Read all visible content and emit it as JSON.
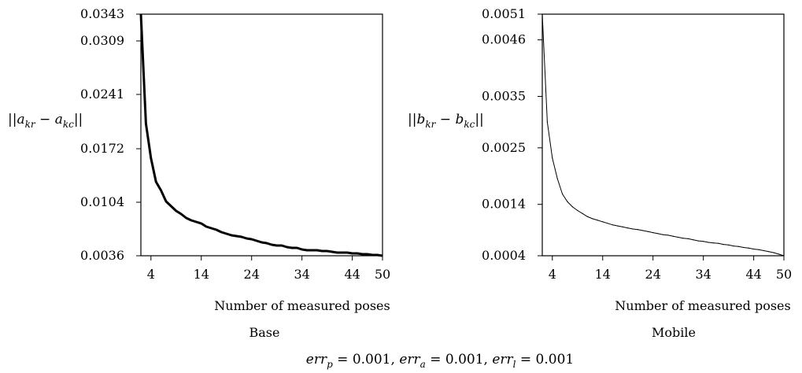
{
  "chart_data": [
    {
      "type": "line",
      "title": "Base",
      "xlabel": "Number of measured poses",
      "ylabel": "||a_{kr} - a_{kc}||",
      "ylabel_parts": {
        "open": "||",
        "var1": "a",
        "sub1": "kr",
        "minus": " − ",
        "var2": "a",
        "sub2": "kc",
        "close": "||"
      },
      "xlim": [
        2,
        50
      ],
      "ylim": [
        0.0036,
        0.0343
      ],
      "x_ticks": [
        4,
        14,
        24,
        34,
        44,
        50
      ],
      "y_ticks": [
        "0.0036",
        "0.0104",
        "0.0172",
        "0.0241",
        "0.0309",
        "0.0343"
      ],
      "grid": false,
      "series": [
        {
          "x": [
            2,
            3,
            4,
            5,
            6,
            7,
            8,
            9,
            10,
            11,
            12,
            13,
            14,
            15,
            16,
            17,
            18,
            19,
            20,
            21,
            22,
            23,
            24,
            25,
            26,
            27,
            28,
            29,
            30,
            31,
            32,
            33,
            34,
            35,
            36,
            37,
            38,
            39,
            40,
            41,
            42,
            43,
            44,
            45,
            46,
            47,
            48,
            49,
            50
          ],
          "values": [
            0.0343,
            0.0204,
            0.016,
            0.013,
            0.0119,
            0.0105,
            0.0099,
            0.0093,
            0.0089,
            0.0084,
            0.0081,
            0.0079,
            0.0077,
            0.0073,
            0.0071,
            0.0069,
            0.0066,
            0.0064,
            0.0062,
            0.0061,
            0.006,
            0.0058,
            0.0057,
            0.0055,
            0.0053,
            0.0052,
            0.005,
            0.0049,
            0.0049,
            0.0047,
            0.0046,
            0.0046,
            0.0044,
            0.0043,
            0.0043,
            0.0043,
            0.0042,
            0.0042,
            0.0041,
            0.004,
            0.004,
            0.004,
            0.0039,
            0.0039,
            0.0038,
            0.0038,
            0.0037,
            0.0037,
            0.0036
          ]
        }
      ]
    },
    {
      "type": "line",
      "title": "Mobile",
      "xlabel": "Number of measured poses",
      "ylabel": "||b_{kr} - b_{kc}||",
      "ylabel_parts": {
        "open": "||",
        "var1": "b",
        "sub1": "kr",
        "minus": " − ",
        "var2": "b",
        "sub2": "kc",
        "close": "||"
      },
      "xlim": [
        2,
        50
      ],
      "ylim": [
        0.0004,
        0.0051
      ],
      "x_ticks": [
        4,
        14,
        24,
        34,
        44,
        50
      ],
      "y_ticks": [
        "0.0004",
        "0.0014",
        "0.0025",
        "0.0035",
        "0.0046",
        "0.0051"
      ],
      "grid": false,
      "series": [
        {
          "x": [
            2,
            3,
            4,
            5,
            6,
            7,
            8,
            9,
            10,
            11,
            12,
            13,
            14,
            15,
            16,
            17,
            18,
            19,
            20,
            21,
            22,
            23,
            24,
            25,
            26,
            27,
            28,
            29,
            30,
            31,
            32,
            33,
            34,
            35,
            36,
            37,
            38,
            39,
            40,
            41,
            42,
            43,
            44,
            45,
            46,
            47,
            48,
            49,
            50
          ],
          "values": [
            0.0051,
            0.003,
            0.0023,
            0.0019,
            0.0016,
            0.00145,
            0.00135,
            0.00128,
            0.00122,
            0.00116,
            0.00112,
            0.00109,
            0.00106,
            0.00103,
            0.001,
            0.00098,
            0.00096,
            0.00094,
            0.00092,
            0.00091,
            0.00089,
            0.00087,
            0.00085,
            0.00083,
            0.00081,
            0.0008,
            0.00078,
            0.00076,
            0.00074,
            0.00073,
            0.00071,
            0.00069,
            0.00068,
            0.00066,
            0.00065,
            0.00064,
            0.00062,
            0.00061,
            0.00059,
            0.00058,
            0.00056,
            0.00055,
            0.00053,
            0.00052,
            0.0005,
            0.00048,
            0.00046,
            0.00043,
            0.0004
          ]
        }
      ]
    }
  ],
  "caption": {
    "v1": "err",
    "s1": "p",
    "val1": " = 0.001, ",
    "v2": "err",
    "s2": "a",
    "val2": " = 0.001, ",
    "v3": "err",
    "s3": "l",
    "val3": " = 0.001"
  }
}
